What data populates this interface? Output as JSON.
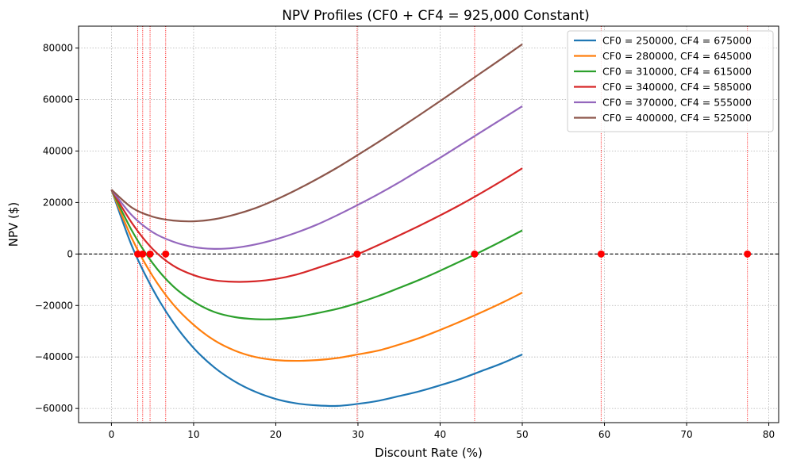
{
  "chart_data": {
    "type": "line",
    "title": "NPV Profiles (CF0 + CF4 = 925,000 Constant)",
    "xlabel": "Discount Rate (%)",
    "ylabel": "NPV ($)",
    "xlim": [
      -4,
      81.2
    ],
    "ylim": [
      -65500,
      88500
    ],
    "xticks": [
      0,
      10,
      20,
      30,
      40,
      50,
      60,
      70,
      80
    ],
    "yticks": [
      -60000,
      -40000,
      -20000,
      0,
      20000,
      40000,
      60000,
      80000
    ],
    "grid": true,
    "legend_position": "top-right",
    "zero_line": true,
    "series": [
      {
        "name": "CF0 = 250000, CF4 = 675000",
        "color": "#1f77b4",
        "x": [
          0,
          2.5,
          5,
          7.5,
          10,
          12.5,
          15,
          17.5,
          20,
          22.5,
          25,
          27.5,
          30,
          32.5,
          35,
          37.5,
          40,
          42.5,
          45,
          47.5,
          50
        ],
        "y": [
          25000,
          3000,
          -13500,
          -26500,
          -36500,
          -44000,
          -49500,
          -53500,
          -56300,
          -58000,
          -58800,
          -59000,
          -58200,
          -57000,
          -55200,
          -53300,
          -51000,
          -48500,
          -45500,
          -42500,
          -39000
        ]
      },
      {
        "name": "CF0 = 280000, CF4 = 645000",
        "color": "#ff7f0e",
        "x": [
          0,
          2.5,
          5,
          7.5,
          10,
          12.5,
          15,
          17.5,
          20,
          22.5,
          25,
          27.5,
          30,
          32.5,
          35,
          37.5,
          40,
          42.5,
          45,
          47.5,
          50
        ],
        "y": [
          25000,
          6000,
          -8500,
          -19500,
          -27500,
          -33500,
          -37500,
          -40000,
          -41200,
          -41500,
          -41200,
          -40400,
          -39000,
          -37500,
          -35200,
          -32600,
          -29500,
          -26200,
          -22700,
          -19000,
          -15000
        ]
      },
      {
        "name": "CF0 = 310000, CF4 = 615000",
        "color": "#2ca02c",
        "x": [
          0,
          2.5,
          5,
          7.5,
          10,
          12.5,
          15,
          17.5,
          20,
          22.5,
          25,
          27.5,
          30,
          32.5,
          35,
          37.5,
          40,
          42.5,
          45,
          47.5,
          50
        ],
        "y": [
          25000,
          9000,
          -3500,
          -12500,
          -18500,
          -22500,
          -24500,
          -25300,
          -25300,
          -24500,
          -23000,
          -21300,
          -19000,
          -16300,
          -13200,
          -10000,
          -6500,
          -2800,
          1000,
          5000,
          9200
        ]
      },
      {
        "name": "CF0 = 340000, CF4 = 585000",
        "color": "#d62728",
        "x": [
          0,
          2.5,
          5,
          7.5,
          10,
          12.5,
          15,
          17.5,
          20,
          22.5,
          25,
          27.5,
          30,
          32.5,
          35,
          37.5,
          40,
          42.5,
          45,
          47.5,
          50
        ],
        "y": [
          25000,
          12000,
          2000,
          -4500,
          -8200,
          -10200,
          -10800,
          -10600,
          -9700,
          -8000,
          -5500,
          -2800,
          0,
          3500,
          7200,
          11000,
          15000,
          19200,
          23700,
          28400,
          33300
        ]
      },
      {
        "name": "CF0 = 370000, CF4 = 555000",
        "color": "#9467bd",
        "x": [
          0,
          2.5,
          5,
          7.5,
          10,
          12.5,
          15,
          17.5,
          20,
          22.5,
          25,
          27.5,
          30,
          32.5,
          35,
          37.5,
          40,
          42.5,
          45,
          47.5,
          50
        ],
        "y": [
          25000,
          15000,
          8500,
          4800,
          2700,
          2000,
          2400,
          3700,
          5700,
          8300,
          11400,
          15100,
          19100,
          23300,
          27800,
          32600,
          37400,
          42400,
          47400,
          52400,
          57400
        ]
      },
      {
        "name": "CF0 = 400000, CF4 = 525000",
        "color": "#8c564b",
        "x": [
          0,
          2.5,
          5,
          7.5,
          10,
          12.5,
          15,
          17.5,
          20,
          22.5,
          25,
          27.5,
          30,
          32.5,
          35,
          37.5,
          40,
          42.5,
          45,
          47.5,
          50
        ],
        "y": [
          25000,
          18000,
          14500,
          13000,
          12700,
          13500,
          15300,
          17800,
          21100,
          24900,
          29100,
          33600,
          38500,
          43500,
          48700,
          54000,
          59400,
          64900,
          70400,
          75900,
          81500
        ]
      }
    ],
    "irr_markers": {
      "color": "#ff0000",
      "x": [
        3.2,
        3.8,
        4.7,
        6.6,
        29.9,
        44.2,
        59.6,
        77.4
      ],
      "y": [
        0,
        0,
        0,
        0,
        0,
        0,
        0,
        0
      ]
    }
  }
}
